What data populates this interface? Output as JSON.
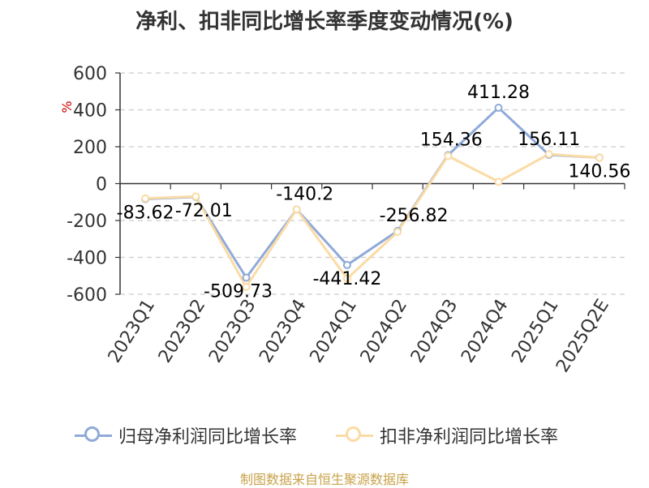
{
  "chart_data": {
    "type": "line",
    "title": "净利、扣非同比增长率季度变动情况(%)",
    "ylabel": "%",
    "categories": [
      "2023Q1",
      "2023Q2",
      "2023Q3",
      "2023Q4",
      "2024Q1",
      "2024Q2",
      "2024Q3",
      "2024Q4",
      "2025Q1",
      "2025Q2E"
    ],
    "ylim": [
      -600,
      600
    ],
    "yticks": [
      600,
      400,
      200,
      0,
      -200,
      -400,
      -600
    ],
    "grid": true,
    "legend": "bottom",
    "series": [
      {
        "name": "归母净利润同比增长率",
        "color": "#8faad9",
        "values": [
          -83.62,
          -72.01,
          -509.73,
          -140.2,
          -441.42,
          -256.82,
          154.36,
          411.28,
          156.11,
          140.56
        ],
        "labels": [
          "-83.62",
          "-72.01",
          "-509.73",
          "-140.2",
          "-441.42",
          "-256.82",
          "154.36",
          "411.28",
          "156.11",
          "140.56"
        ]
      },
      {
        "name": "扣非净利润同比增长率",
        "color": "#fbdba5",
        "values": [
          -80,
          -70,
          -560,
          -140,
          -515,
          -262,
          150,
          10,
          160,
          140
        ]
      }
    ],
    "source": "制图数据来自恒生聚源数据库"
  }
}
